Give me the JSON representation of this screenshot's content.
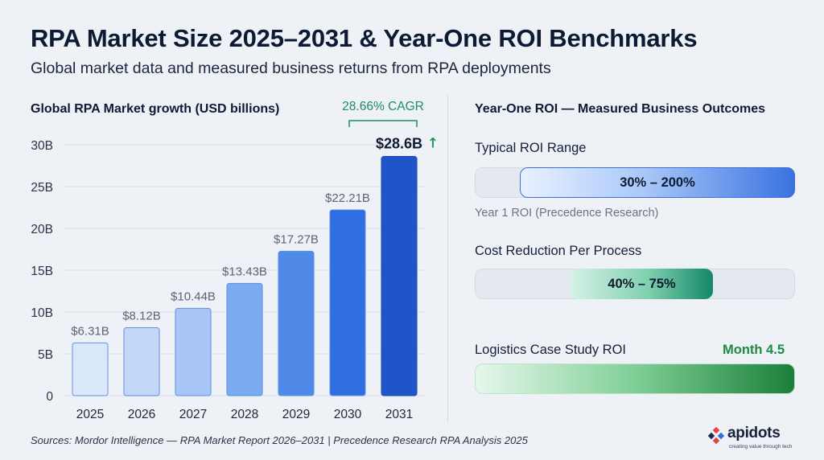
{
  "header": {
    "title": "RPA Market Size 2025–2031 & Year-One ROI Benchmarks",
    "subtitle": "Global market data and measured business returns from RPA deployments"
  },
  "chart_data": {
    "type": "bar",
    "title": "Global RPA Market growth (USD billions)",
    "categories": [
      "2025",
      "2026",
      "2027",
      "2028",
      "2029",
      "2030",
      "2031"
    ],
    "values": [
      6.31,
      8.12,
      10.44,
      13.43,
      17.27,
      22.21,
      28.6
    ],
    "data_labels": [
      "$6.31B",
      "$8.12B",
      "$10.44B",
      "$13.43B",
      "$17.27B",
      "$22.21B",
      "$28.6B"
    ],
    "y_ticks": [
      "0",
      "5B",
      "10B",
      "15B",
      "20B",
      "25B",
      "30B"
    ],
    "ylim": [
      0,
      30
    ],
    "grid": true,
    "annotation": "28.66% CAGR",
    "colors": [
      "#dbe8fb",
      "#c3d8f8",
      "#a7c6f5",
      "#7aaaf0",
      "#4f8ae8",
      "#2f6ee0",
      "#1f55c8"
    ]
  },
  "roi": {
    "title": "Year-One ROI — Measured Business Outcomes",
    "items": [
      {
        "label": "Typical ROI Range",
        "value": "30% – 200%",
        "note": "Year 1 ROI (Precedence Research)"
      },
      {
        "label": "Cost Reduction Per Process",
        "value": "40% – 75%"
      },
      {
        "label": "Logistics Case Study ROI",
        "value": "Month 4.5"
      }
    ]
  },
  "footer": {
    "sources": "Sources: Mordor Intelligence — RPA Market Report 2026–2031 | Precedence Research RPA Analysis 2025"
  },
  "logo": {
    "name": "apidots",
    "tagline": "creating value through tech",
    "colors": [
      "#e8423f",
      "#2e6fe0",
      "#1c2a4a"
    ]
  },
  "colors": {
    "cagr_accent": "#1f8a6a",
    "up_arrow": "#1f9a55"
  }
}
